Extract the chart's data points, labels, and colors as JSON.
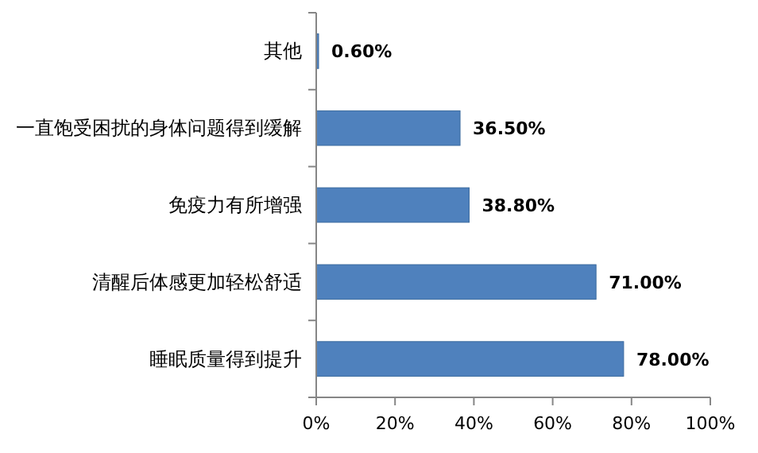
{
  "chart_data": {
    "type": "bar",
    "orientation": "horizontal",
    "categories": [
      "其他",
      "一直饱受困扰的身体问题得到缓解",
      "免疫力有所增强",
      "清醒后体感更加轻松舒适",
      "睡眠质量得到提升"
    ],
    "values": [
      0.6,
      36.5,
      38.8,
      71.0,
      78.0
    ],
    "value_labels": [
      "0.60%",
      "36.50%",
      "38.80%",
      "71.00%",
      "78.00%"
    ],
    "color": "#4f81bd",
    "xlim": [
      0,
      100
    ],
    "xticks": [
      {
        "value": 0,
        "label": "0%"
      },
      {
        "value": 20,
        "label": "20%"
      },
      {
        "value": 40,
        "label": "40%"
      },
      {
        "value": 60,
        "label": "60%"
      },
      {
        "value": 80,
        "label": "80%"
      },
      {
        "value": 100,
        "label": "100%"
      }
    ],
    "grid": false
  }
}
